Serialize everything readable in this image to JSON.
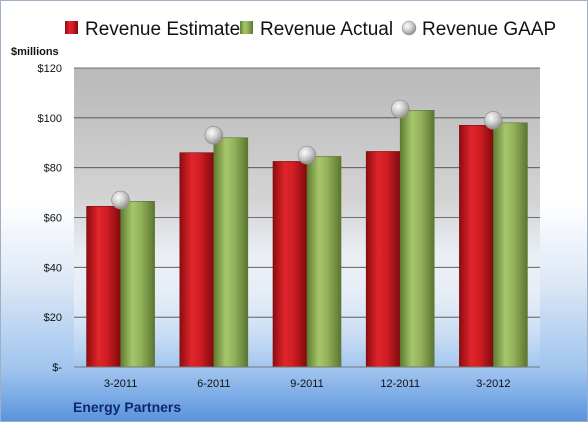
{
  "chart_data": {
    "type": "bar",
    "unit_label": "$millions",
    "company": "Energy Partners",
    "categories": [
      "3-2011",
      "6-2011",
      "9-2011",
      "12-2011",
      "3-2012"
    ],
    "series": [
      {
        "name": "Revenue Estimate",
        "kind": "bar",
        "color": "#c8181e",
        "values": [
          64.5,
          86,
          82.5,
          86.5,
          97
        ]
      },
      {
        "name": "Revenue Actual",
        "kind": "bar",
        "color": "#8fae57",
        "values": [
          66.5,
          92,
          84.5,
          103,
          98
        ]
      },
      {
        "name": "Revenue GAAP",
        "kind": "marker",
        "color": "#c0c0c0",
        "values": [
          67,
          93,
          85,
          103.5,
          99
        ]
      }
    ],
    "ylim": [
      0,
      120
    ],
    "yticks": [
      0,
      20,
      40,
      60,
      80,
      100,
      120
    ],
    "ytick_labels": [
      "$-",
      "$20",
      "$40",
      "$60",
      "$80",
      "$100",
      "$120"
    ],
    "grid": true,
    "legend_position": "top"
  }
}
